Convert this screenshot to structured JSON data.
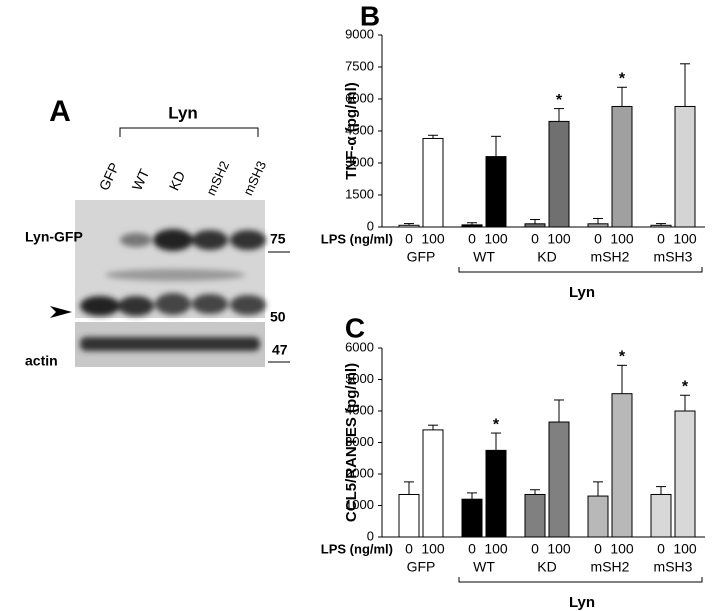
{
  "blot": {
    "panel": "A",
    "group": "Lyn",
    "lanes": [
      "GFP",
      "WT",
      "KD",
      "mSH2",
      "mSH3"
    ],
    "rows": [
      "Lyn-GFP",
      "actin"
    ],
    "markers": [
      "75",
      "50",
      "47"
    ]
  },
  "chart_data": [
    {
      "type": "bar",
      "panel": "B",
      "ylabel": "TNF-α (pg/ml)",
      "xlabel": "LPS (ng/ml)",
      "categories": [
        "0",
        "100",
        "0",
        "100",
        "0",
        "100",
        "0",
        "100",
        "0",
        "100"
      ],
      "groups": [
        "GFP",
        "WT",
        "KD",
        "mSH2",
        "mSH3"
      ],
      "bracket": "Lyn",
      "values": [
        80,
        4150,
        100,
        3300,
        150,
        4950,
        150,
        5650,
        80,
        5650
      ],
      "errors": [
        80,
        150,
        100,
        950,
        200,
        600,
        250,
        900,
        80,
        2000
      ],
      "markers": [
        null,
        null,
        null,
        null,
        null,
        "*",
        null,
        "*",
        null,
        null
      ],
      "colors": [
        "#ffffff",
        "#ffffff",
        "#000000",
        "#000000",
        "#707070",
        "#707070",
        "#a0a0a0",
        "#a0a0a0",
        "#d4d4d4",
        "#d4d4d4"
      ],
      "ylim": [
        0,
        9000
      ],
      "yticks": [
        0,
        1500,
        3000,
        4500,
        6000,
        7500,
        9000
      ]
    },
    {
      "type": "bar",
      "panel": "C",
      "ylabel": "CCL5/RANTES (pg/ml)",
      "xlabel": "LPS (ng/ml)",
      "categories": [
        "0",
        "100",
        "0",
        "100",
        "0",
        "100",
        "0",
        "100",
        "0",
        "100"
      ],
      "groups": [
        "GFP",
        "WT",
        "KD",
        "mSH2",
        "mSH3"
      ],
      "bracket": "Lyn",
      "values": [
        1350,
        3400,
        1200,
        2750,
        1350,
        3650,
        1300,
        4550,
        1350,
        4000
      ],
      "errors": [
        400,
        150,
        200,
        550,
        150,
        700,
        450,
        900,
        250,
        500
      ],
      "markers": [
        null,
        null,
        null,
        "*",
        null,
        null,
        null,
        "*",
        null,
        "*"
      ],
      "colors": [
        "#ffffff",
        "#ffffff",
        "#000000",
        "#000000",
        "#808080",
        "#808080",
        "#b8b8b8",
        "#b8b8b8",
        "#d8d8d8",
        "#d8d8d8"
      ],
      "ylim": [
        0,
        6000
      ],
      "yticks": [
        0,
        1000,
        2000,
        3000,
        4000,
        5000,
        6000
      ]
    }
  ]
}
